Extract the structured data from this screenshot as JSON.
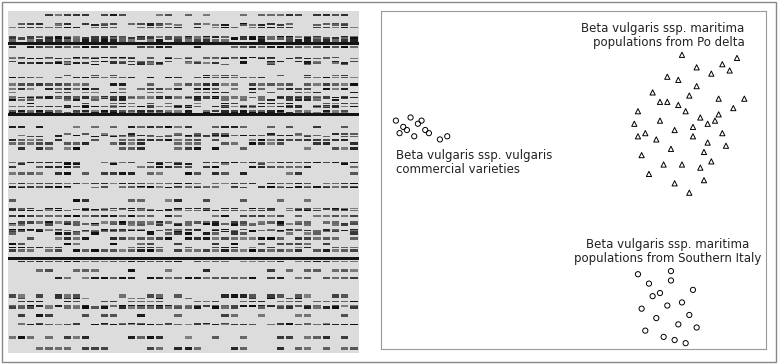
{
  "chart_data": {
    "type": "scatter",
    "xlim": [
      0,
      10.5
    ],
    "ylim": [
      0,
      10.8
    ],
    "tick_labels": false,
    "grid": false,
    "series": [
      {
        "name": "Beta vulgaris ssp. maritima\npopulations from Po delta",
        "color": "#000000",
        "marker": "triangle",
        "x": [
          7.0,
          7.4,
          7.8,
          8.1,
          8.4,
          8.7,
          9.0,
          9.3,
          9.6,
          7.2,
          7.6,
          8.0,
          8.3,
          8.6,
          8.9,
          9.2,
          9.5,
          7.1,
          7.5,
          7.9,
          8.2,
          8.5,
          8.8,
          9.1,
          9.4,
          7.3,
          7.7,
          8.0,
          8.4,
          8.7,
          9.0,
          7.6,
          8.1,
          8.5,
          8.9,
          9.3,
          7.8,
          8.2,
          8.6,
          9.7,
          9.9,
          6.9,
          7.0,
          8.8,
          9.2
        ],
        "values": [
          7.6,
          8.2,
          7.9,
          8.6,
          8.1,
          7.4,
          8.8,
          9.1,
          7.7,
          6.9,
          7.3,
          7.0,
          7.6,
          8.4,
          6.6,
          8.0,
          8.9,
          6.2,
          6.7,
          6.4,
          5.9,
          7.1,
          6.3,
          7.3,
          6.5,
          5.6,
          5.9,
          5.3,
          5.0,
          5.8,
          6.0,
          7.9,
          7.8,
          6.8,
          7.2,
          6.9,
          8.7,
          9.4,
          9.0,
          9.3,
          8.0,
          7.2,
          6.8,
          5.4,
          7.5
        ]
      },
      {
        "name": "Beta vulgaris ssp. vulgaris\ncommercial varieties",
        "color": "#000000",
        "marker": "circle",
        "x": [
          0.4,
          0.6,
          0.8,
          1.0,
          1.2,
          0.5,
          0.9,
          1.1,
          1.6,
          1.8,
          0.7,
          1.3
        ],
        "values": [
          7.3,
          7.1,
          7.4,
          7.2,
          7.0,
          6.9,
          6.8,
          7.3,
          6.7,
          6.8,
          7.0,
          6.9
        ]
      },
      {
        "name": "Beta vulgaris ssp. maritima\npopulations from Southern Italy",
        "color": "#000000",
        "marker": "circle",
        "x": [
          7.0,
          7.3,
          7.6,
          7.9,
          8.2,
          8.5,
          7.1,
          7.5,
          7.8,
          8.1,
          8.4,
          7.2,
          7.7,
          8.0,
          8.6,
          7.4,
          7.9,
          8.3
        ],
        "values": [
          2.4,
          2.1,
          1.8,
          2.2,
          1.5,
          1.9,
          1.3,
          1.0,
          1.4,
          0.8,
          1.1,
          0.6,
          0.4,
          0.3,
          0.7,
          1.7,
          2.5,
          0.2
        ]
      }
    ]
  }
}
